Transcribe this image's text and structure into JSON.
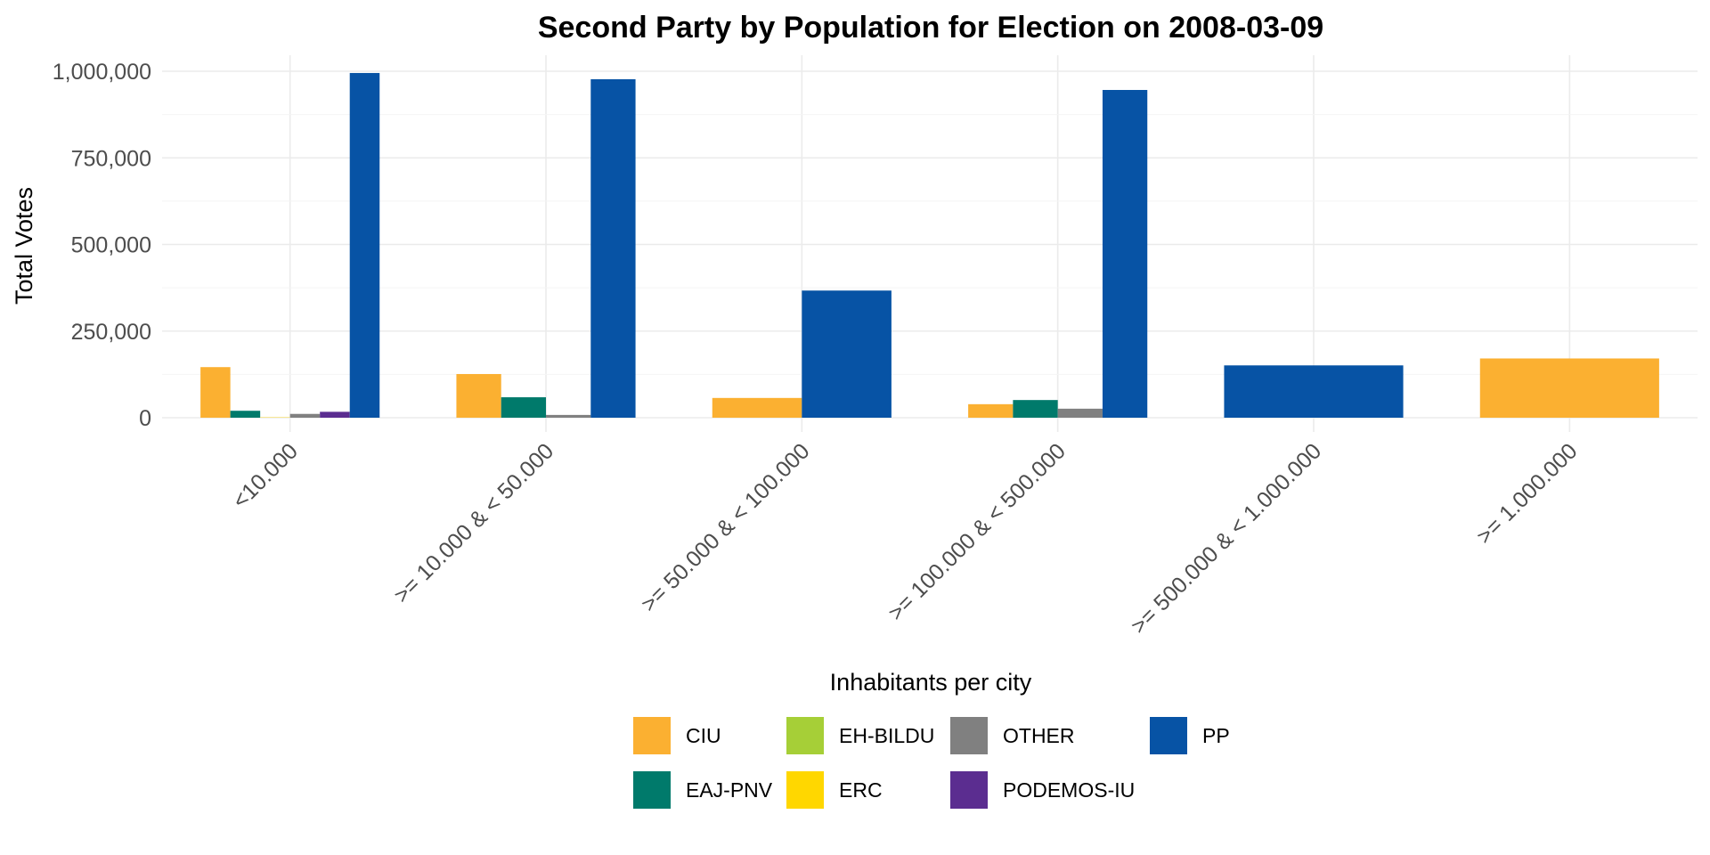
{
  "chart_data": {
    "type": "bar",
    "title": "Second Party by Population for Election on 2008-03-09",
    "xlabel": "Inhabitants per city",
    "ylabel": "Total Votes",
    "ylim": [
      0,
      1050000
    ],
    "yticks": [
      {
        "value": 0,
        "label": "0"
      },
      {
        "value": 250000,
        "label": "250,000"
      },
      {
        "value": 500000,
        "label": "500,000"
      },
      {
        "value": 750000,
        "label": "750,000"
      },
      {
        "value": 1000000,
        "label": "1,000,000"
      }
    ],
    "grid": true,
    "legend_position": "bottom",
    "legend": [
      {
        "name": "CIU",
        "color": "#FBB031"
      },
      {
        "name": "EAJ-PNV",
        "color": "#007A6B"
      },
      {
        "name": "EH-BILDU",
        "color": "#A6CF37"
      },
      {
        "name": "ERC",
        "color": "#FFD700"
      },
      {
        "name": "OTHER",
        "color": "#808080"
      },
      {
        "name": "PODEMOS-IU",
        "color": "#5B2D90"
      },
      {
        "name": "PP",
        "color": "#0753A5"
      }
    ],
    "categories": [
      "<10.000",
      ">= 10.000 & < 50.000",
      ">= 50.000 & < 100.000",
      ">= 100.000 & < 500.000",
      ">= 500.000 & < 1.000.000",
      ">= 1.000.000"
    ],
    "groups": [
      {
        "category": "<10.000",
        "bars": [
          {
            "party": "CIU",
            "value": 146000
          },
          {
            "party": "EAJ-PNV",
            "value": 20000
          },
          {
            "party": "ERC",
            "value": 1000
          },
          {
            "party": "OTHER",
            "value": 11000
          },
          {
            "party": "PODEMOS-IU",
            "value": 17000
          },
          {
            "party": "PP",
            "value": 995000
          }
        ]
      },
      {
        "category": ">= 10.000 & < 50.000",
        "bars": [
          {
            "party": "CIU",
            "value": 126000
          },
          {
            "party": "EAJ-PNV",
            "value": 59000
          },
          {
            "party": "OTHER",
            "value": 8000
          },
          {
            "party": "PP",
            "value": 977000
          }
        ]
      },
      {
        "category": ">= 50.000 & < 100.000",
        "bars": [
          {
            "party": "CIU",
            "value": 57000
          },
          {
            "party": "PP",
            "value": 367000
          }
        ]
      },
      {
        "category": ">= 100.000 & < 500.000",
        "bars": [
          {
            "party": "CIU",
            "value": 39000
          },
          {
            "party": "EAJ-PNV",
            "value": 51000
          },
          {
            "party": "OTHER",
            "value": 26000
          },
          {
            "party": "PP",
            "value": 946000
          }
        ]
      },
      {
        "category": ">= 500.000 & < 1.000.000",
        "bars": [
          {
            "party": "PP",
            "value": 151000
          }
        ]
      },
      {
        "category": ">= 1.000.000",
        "bars": [
          {
            "party": "CIU",
            "value": 171000
          }
        ]
      }
    ]
  }
}
